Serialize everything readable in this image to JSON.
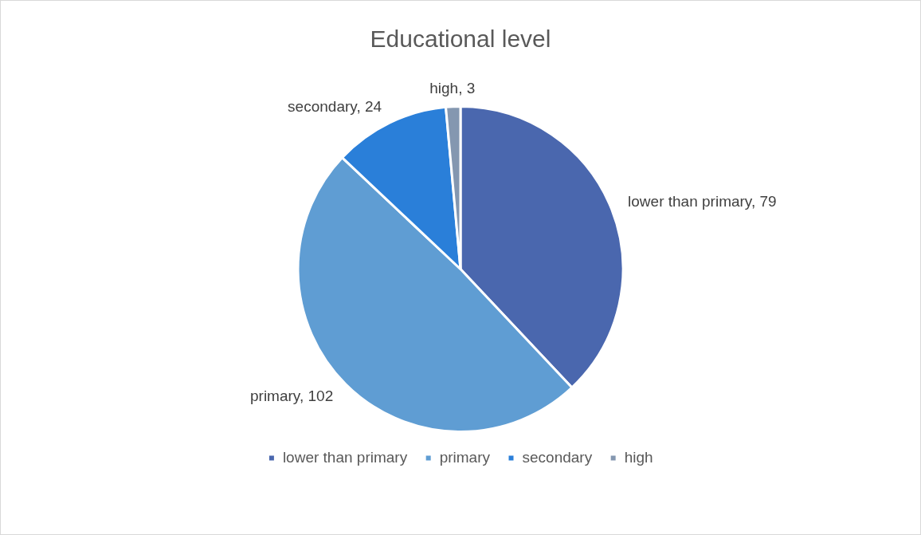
{
  "chart_data": {
    "type": "pie",
    "title": "Educational level",
    "categories": [
      "lower than primary",
      "primary",
      "secondary",
      "high"
    ],
    "values": [
      79,
      102,
      24,
      3
    ],
    "value_labels": [
      "lower than primary, 79",
      "primary, 102",
      "secondary, 24",
      "high, 3"
    ],
    "colors": [
      "#4a67ae",
      "#5f9dd3",
      "#2a7fd9",
      "#8497b0"
    ],
    "legend": "bottom"
  }
}
